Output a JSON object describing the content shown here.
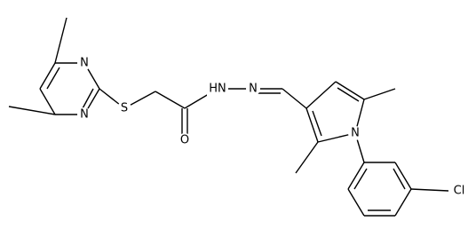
{
  "atoms": [
    {
      "label": "N"
    },
    {
      "label": "N"
    },
    {
      "label": "S"
    },
    {
      "label": "O"
    },
    {
      "label": "HN"
    },
    {
      "label": "N"
    },
    {
      "label": "N"
    },
    {
      "label": "Cl"
    }
  ]
}
